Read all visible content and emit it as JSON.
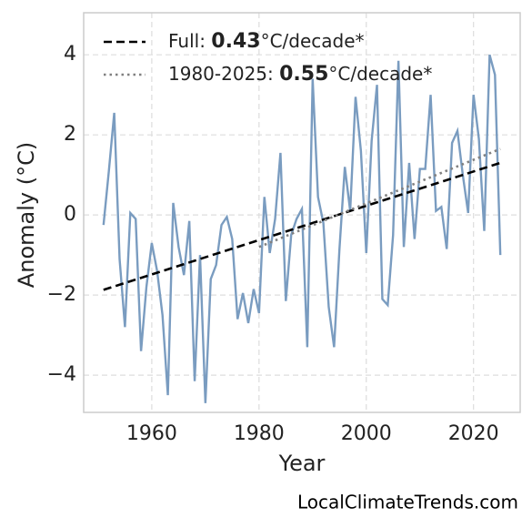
{
  "chart_data": {
    "type": "line",
    "x_label": "Year",
    "y_label": "Anomaly (°C)",
    "source": "LocalClimateTrends.com",
    "xlim": [
      1947.3,
      2028.7
    ],
    "ylim": [
      -4.93,
      5.05
    ],
    "xticks": [
      1960,
      1980,
      2000,
      2020
    ],
    "yticks": [
      {
        "value": -4,
        "label": "−4"
      },
      {
        "value": -2,
        "label": "−2"
      },
      0,
      2,
      4
    ],
    "grid": true,
    "legend": "upper left",
    "series": [
      {
        "color": "#7a9cc0",
        "style": "solid",
        "x": [
          1951,
          1952,
          1953,
          1954,
          1955,
          1956,
          1957,
          1958,
          1959,
          1960,
          1961,
          1962,
          1963,
          1964,
          1965,
          1966,
          1967,
          1968,
          1969,
          1970,
          1971,
          1972,
          1973,
          1974,
          1975,
          1976,
          1977,
          1978,
          1979,
          1980,
          1981,
          1982,
          1983,
          1984,
          1985,
          1986,
          1987,
          1988,
          1989,
          1990,
          1991,
          1992,
          1993,
          1994,
          1995,
          1996,
          1997,
          1998,
          1999,
          2000,
          2001,
          2002,
          2003,
          2004,
          2005,
          2006,
          2007,
          2008,
          2009,
          2010,
          2011,
          2012,
          2013,
          2014,
          2015,
          2016,
          2017,
          2018,
          2019,
          2020,
          2021,
          2022,
          2023,
          2024,
          2025
        ],
        "values": [
          -0.25,
          1.1,
          2.55,
          -1.1,
          -2.8,
          0.05,
          -0.1,
          -3.4,
          -1.8,
          -0.7,
          -1.4,
          -2.5,
          -4.5,
          0.3,
          -0.8,
          -1.5,
          -0.15,
          -4.15,
          -1.0,
          -4.7,
          -1.6,
          -1.25,
          -0.25,
          -0.05,
          -0.6,
          -2.6,
          -1.95,
          -2.7,
          -1.85,
          -2.45,
          0.45,
          -0.95,
          -0.1,
          1.55,
          -2.15,
          -0.5,
          -0.1,
          0.15,
          -3.3,
          3.4,
          0.45,
          -0.2,
          -2.3,
          -3.3,
          -0.85,
          1.2,
          0.1,
          2.95,
          1.6,
          -0.95,
          1.85,
          3.25,
          -2.1,
          -2.25,
          -0.5,
          3.85,
          -0.8,
          1.3,
          -0.6,
          1.15,
          1.15,
          3.0,
          0.1,
          0.2,
          -0.85,
          1.8,
          2.1,
          1.0,
          0.05,
          3.0,
          1.9,
          -0.4,
          4.0,
          3.5,
          -1.0
        ]
      },
      {
        "name": "Full: 0.43°C/decade*",
        "color": "#000000",
        "style": "dashed",
        "x": [
          1951,
          2025
        ],
        "values": [
          -1.87,
          1.3
        ]
      },
      {
        "name": "1980-2025: 0.55°C/decade*",
        "color": "#808080",
        "style": "dotted",
        "x": [
          1980,
          2025
        ],
        "values": [
          -0.8,
          1.65
        ]
      }
    ]
  }
}
